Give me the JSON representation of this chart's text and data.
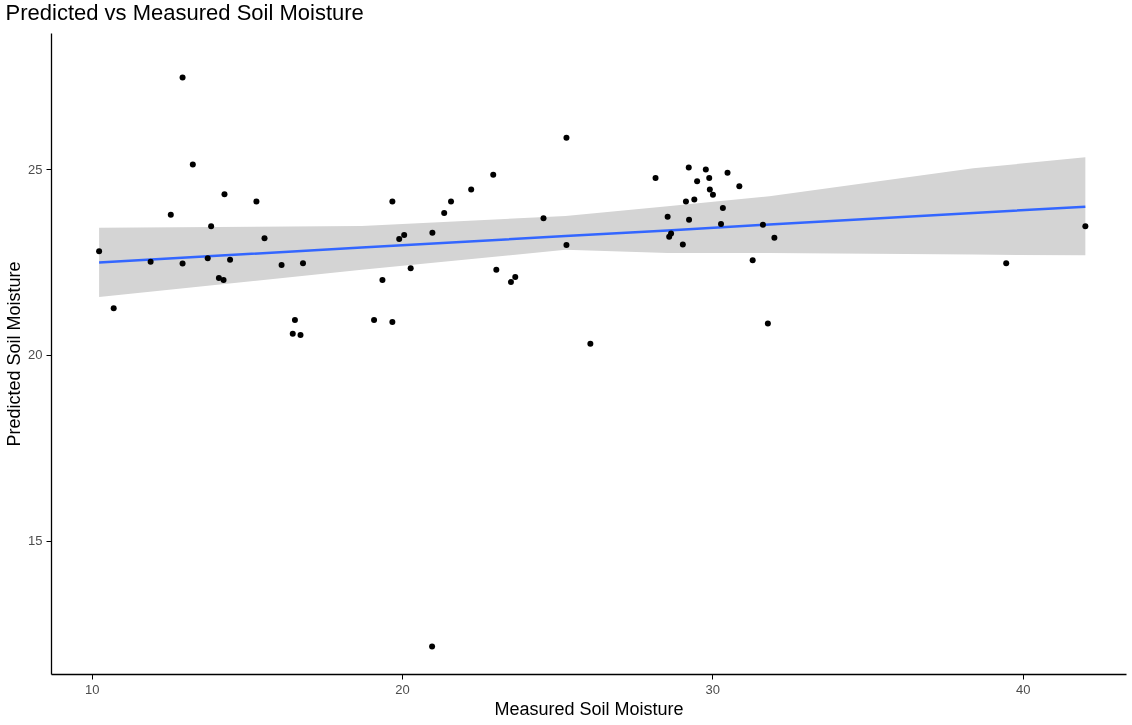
{
  "chart_data": {
    "type": "scatter",
    "title": "Predicted vs Measured Soil Moisture",
    "xlabel": "Measured Soil Moisture",
    "ylabel": "Predicted Soil Moisture",
    "xlim": [
      8.69,
      43.33
    ],
    "ylim": [
      11.42,
      28.66
    ],
    "xticks": [
      10,
      20,
      30,
      40
    ],
    "yticks": [
      15,
      20,
      25
    ],
    "grid": false,
    "series": [
      {
        "marker": "circle",
        "color": "#000000",
        "x": [
          10.24,
          10.71,
          12.93,
          13.26,
          12.55,
          14.28,
          15.31,
          13.85,
          15.57,
          11.9,
          12.93,
          13.74,
          14.46,
          14.1,
          14.25,
          16.12,
          16.81,
          16.55,
          16.48,
          16.73,
          19.1,
          19.69,
          19.37,
          20.28,
          19.69,
          19.91,
          20.07,
          20.98,
          21.36,
          21.58,
          22.23,
          22.94,
          23.04,
          23.51,
          23.65,
          24.56,
          25.3,
          25.3,
          26.07,
          28.17,
          28.56,
          29.24,
          29.79,
          29.51,
          29.9,
          30.49,
          29.92,
          30.02,
          30.87,
          29.15,
          29.42,
          29.25,
          30.34,
          30.28,
          28.61,
          28.67,
          29.05,
          31.63,
          32.0,
          31.3,
          31.79,
          39.47,
          42.02,
          20.97
        ],
        "values": [
          22.79,
          21.26,
          27.46,
          25.12,
          23.77,
          24.32,
          24.13,
          23.46,
          23.14,
          22.51,
          22.46,
          22.6,
          22.56,
          22.07,
          22.02,
          22.42,
          22.47,
          20.94,
          20.57,
          20.54,
          20.94,
          20.89,
          22.02,
          22.33,
          24.13,
          23.12,
          23.23,
          23.29,
          23.82,
          24.13,
          24.45,
          24.85,
          22.29,
          21.96,
          22.1,
          23.68,
          25.84,
          22.96,
          20.3,
          24.76,
          23.72,
          25.04,
          24.99,
          24.67,
          24.76,
          24.9,
          24.45,
          24.31,
          24.54,
          24.13,
          24.18,
          23.64,
          23.95,
          23.52,
          23.18,
          23.27,
          22.97,
          23.5,
          23.15,
          22.55,
          20.85,
          22.47,
          23.46,
          12.16
        ]
      },
      {
        "type": "line",
        "marker": "none",
        "color": "#3366ff",
        "line_style": "solid",
        "x": [
          10.24,
          18.7,
          25.27,
          28.56,
          31.84,
          38.41,
          42.02
        ],
        "values": [
          22.49,
          22.89,
          23.2,
          23.35,
          23.51,
          23.82,
          23.99
        ],
        "lower": [
          21.56,
          22.29,
          22.83,
          22.74,
          22.74,
          22.7,
          22.68
        ],
        "upper": [
          23.42,
          23.47,
          23.74,
          24.0,
          24.27,
          25.02,
          25.32
        ]
      }
    ]
  }
}
